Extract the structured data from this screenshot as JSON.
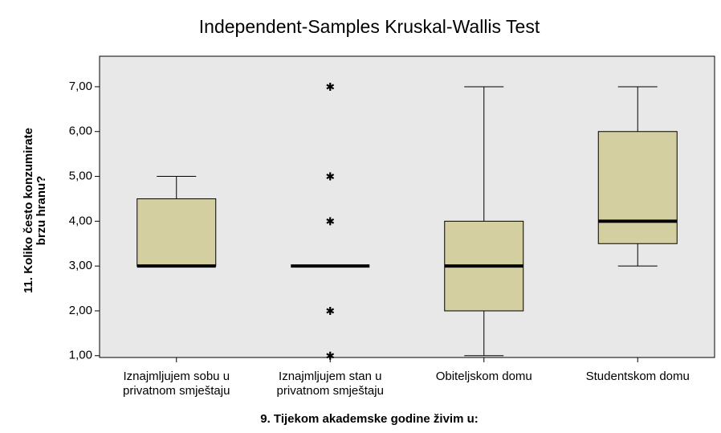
{
  "chart_data": {
    "type": "box",
    "title": "Independent-Samples Kruskal-Wallis Test",
    "x_label": "9. Tijekom akademske godine živim u:",
    "y_label": [
      "11. Koliko često konzumirate",
      "brzu hranu?"
    ],
    "categories": [
      [
        "Iznajmljujem sobu u",
        "privatnom smještaju"
      ],
      [
        "Iznajmljujem stan  u",
        "privatnom smještaju"
      ],
      [
        "Obiteljskom domu"
      ],
      [
        "Studentskom domu"
      ]
    ],
    "boxes": [
      {
        "min": 3,
        "q1": 3,
        "median": 3,
        "q3": 4.5,
        "max": 5,
        "outliers": []
      },
      {
        "min": 3,
        "q1": 3,
        "median": 3,
        "q3": 3,
        "max": 3,
        "outliers": [
          1,
          2,
          4,
          5,
          7
        ]
      },
      {
        "min": 1,
        "q1": 2,
        "median": 3,
        "q3": 4,
        "max": 7,
        "outliers": []
      },
      {
        "min": 3,
        "q1": 3.5,
        "median": 4,
        "q3": 6,
        "max": 7,
        "outliers": []
      }
    ],
    "color": "#d4cfa0",
    "ylim": [
      0.96,
      7.68
    ],
    "yticks": [
      {
        "value": 1,
        "label": "1,00"
      },
      {
        "value": 2,
        "label": "2,00"
      },
      {
        "value": 3,
        "label": "3,00"
      },
      {
        "value": 4,
        "label": "4,00"
      },
      {
        "value": 5,
        "label": "5,00"
      },
      {
        "value": 6,
        "label": "6,00"
      },
      {
        "value": 7,
        "label": "7,00"
      }
    ],
    "grid": false
  }
}
